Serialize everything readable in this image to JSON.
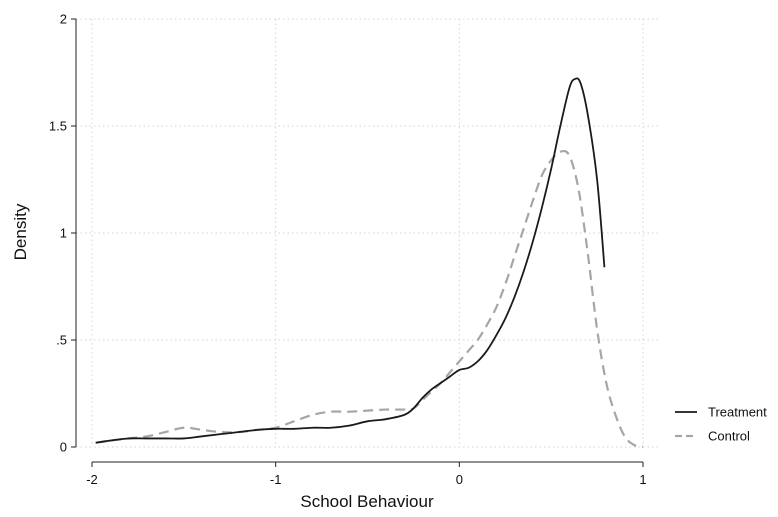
{
  "chart_data": {
    "type": "line",
    "title": "",
    "xlabel": "School Behaviour",
    "ylabel": "Density",
    "xlim": [
      -2,
      1
    ],
    "ylim": [
      0,
      2
    ],
    "x_ticks": [
      -2,
      -1,
      0,
      1
    ],
    "x_tick_labels": [
      "-2",
      "-1",
      "0",
      "1"
    ],
    "y_ticks": [
      0,
      0.5,
      1,
      1.5,
      2
    ],
    "y_tick_labels": [
      "0",
      ".5",
      "1",
      "1.5",
      "2"
    ],
    "grid": true,
    "legend_position": "bottom-right",
    "series": [
      {
        "name": "Treatment",
        "color": "#1a1a1a",
        "style": "solid",
        "points": [
          [
            -1.98,
            0.02
          ],
          [
            -1.9,
            0.03
          ],
          [
            -1.8,
            0.04
          ],
          [
            -1.7,
            0.04
          ],
          [
            -1.6,
            0.04
          ],
          [
            -1.5,
            0.04
          ],
          [
            -1.4,
            0.05
          ],
          [
            -1.3,
            0.06
          ],
          [
            -1.2,
            0.07
          ],
          [
            -1.1,
            0.08
          ],
          [
            -1.0,
            0.085
          ],
          [
            -0.9,
            0.085
          ],
          [
            -0.8,
            0.09
          ],
          [
            -0.7,
            0.09
          ],
          [
            -0.6,
            0.1
          ],
          [
            -0.5,
            0.12
          ],
          [
            -0.4,
            0.13
          ],
          [
            -0.3,
            0.15
          ],
          [
            -0.25,
            0.18
          ],
          [
            -0.2,
            0.23
          ],
          [
            -0.15,
            0.27
          ],
          [
            -0.1,
            0.3
          ],
          [
            -0.05,
            0.33
          ],
          [
            0.0,
            0.36
          ],
          [
            0.05,
            0.37
          ],
          [
            0.1,
            0.4
          ],
          [
            0.15,
            0.45
          ],
          [
            0.2,
            0.52
          ],
          [
            0.25,
            0.6
          ],
          [
            0.3,
            0.7
          ],
          [
            0.35,
            0.82
          ],
          [
            0.4,
            0.96
          ],
          [
            0.45,
            1.12
          ],
          [
            0.5,
            1.3
          ],
          [
            0.55,
            1.5
          ],
          [
            0.6,
            1.68
          ],
          [
            0.63,
            1.72
          ],
          [
            0.66,
            1.7
          ],
          [
            0.7,
            1.55
          ],
          [
            0.75,
            1.25
          ],
          [
            0.79,
            0.84
          ]
        ]
      },
      {
        "name": "Control",
        "color": "#a6a6a6",
        "style": "dashed",
        "points": [
          [
            -1.98,
            0.02
          ],
          [
            -1.9,
            0.03
          ],
          [
            -1.8,
            0.04
          ],
          [
            -1.7,
            0.05
          ],
          [
            -1.6,
            0.07
          ],
          [
            -1.5,
            0.09
          ],
          [
            -1.4,
            0.08
          ],
          [
            -1.3,
            0.07
          ],
          [
            -1.2,
            0.07
          ],
          [
            -1.1,
            0.08
          ],
          [
            -1.0,
            0.09
          ],
          [
            -0.9,
            0.12
          ],
          [
            -0.8,
            0.15
          ],
          [
            -0.7,
            0.165
          ],
          [
            -0.6,
            0.165
          ],
          [
            -0.5,
            0.17
          ],
          [
            -0.4,
            0.175
          ],
          [
            -0.3,
            0.175
          ],
          [
            -0.25,
            0.18
          ],
          [
            -0.2,
            0.22
          ],
          [
            -0.15,
            0.26
          ],
          [
            -0.1,
            0.3
          ],
          [
            -0.05,
            0.35
          ],
          [
            0.0,
            0.4
          ],
          [
            0.05,
            0.45
          ],
          [
            0.1,
            0.5
          ],
          [
            0.15,
            0.57
          ],
          [
            0.2,
            0.65
          ],
          [
            0.25,
            0.76
          ],
          [
            0.3,
            0.89
          ],
          [
            0.35,
            1.02
          ],
          [
            0.4,
            1.15
          ],
          [
            0.45,
            1.27
          ],
          [
            0.5,
            1.34
          ],
          [
            0.55,
            1.38
          ],
          [
            0.6,
            1.36
          ],
          [
            0.65,
            1.2
          ],
          [
            0.7,
            0.9
          ],
          [
            0.75,
            0.55
          ],
          [
            0.8,
            0.3
          ],
          [
            0.85,
            0.15
          ],
          [
            0.9,
            0.05
          ],
          [
            0.95,
            0.01
          ],
          [
            1.0,
            0.0
          ]
        ]
      }
    ]
  }
}
